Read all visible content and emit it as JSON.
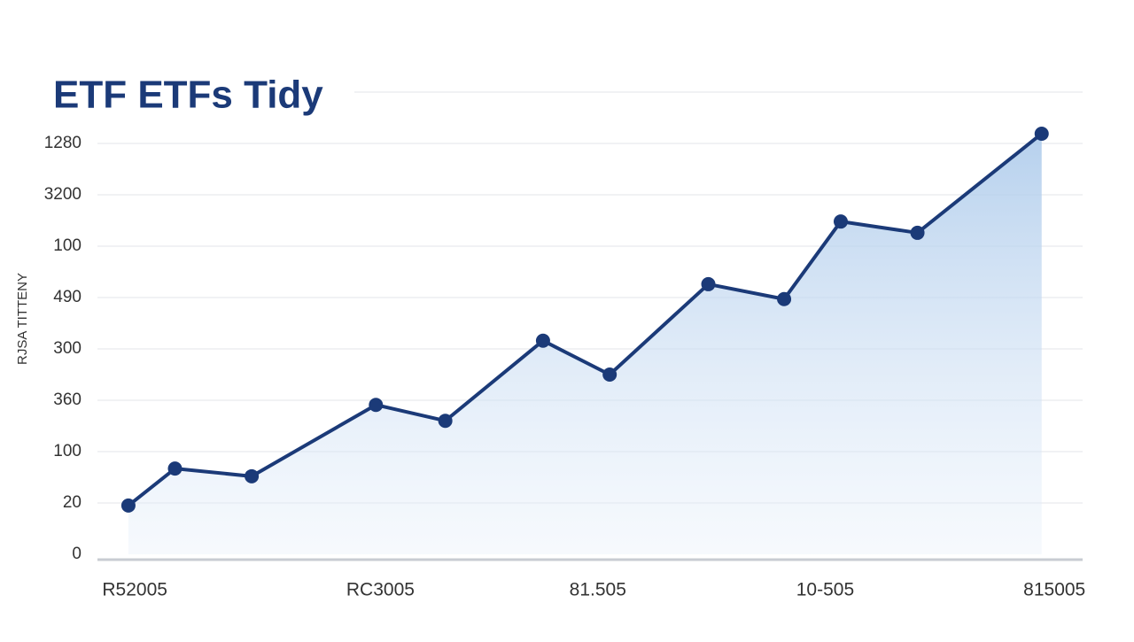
{
  "chart_data": {
    "type": "line",
    "title": "ETF ETFs Tidy",
    "y_label": "RJSA TITTENY",
    "x": [
      0,
      5.1,
      13.5,
      27.1,
      34.7,
      45.4,
      52.7,
      63.5,
      71.8,
      78,
      86.4,
      100
    ],
    "series": [
      {
        "name": "ETF",
        "color": "#1b3a78",
        "values": [
          0.95,
          1.67,
          1.52,
          2.91,
          2.6,
          4.16,
          3.5,
          5.26,
          4.97,
          6.48,
          6.26,
          8.19
        ]
      }
    ],
    "xlim": [
      -3,
      104
    ],
    "xticks": [
      {
        "value": 0.7,
        "label": "R52005"
      },
      {
        "value": 27.6,
        "label": "RC3005"
      },
      {
        "value": 51.4,
        "label": "81.505"
      },
      {
        "value": 76.3,
        "label": "10-505"
      },
      {
        "value": 101.4,
        "label": "815005"
      }
    ],
    "ylim": [
      0,
      9
    ],
    "yticks": [
      0,
      {
        "value": 1,
        "label": "20"
      },
      {
        "value": 2,
        "label": "100"
      },
      {
        "value": 3,
        "label": "360"
      },
      {
        "value": 4,
        "label": "300"
      },
      {
        "value": 5,
        "label": "490"
      },
      {
        "value": 6,
        "label": "100"
      },
      {
        "value": 7,
        "label": "3200"
      },
      {
        "value": 8,
        "label": "1280"
      }
    ],
    "grid": true
  }
}
